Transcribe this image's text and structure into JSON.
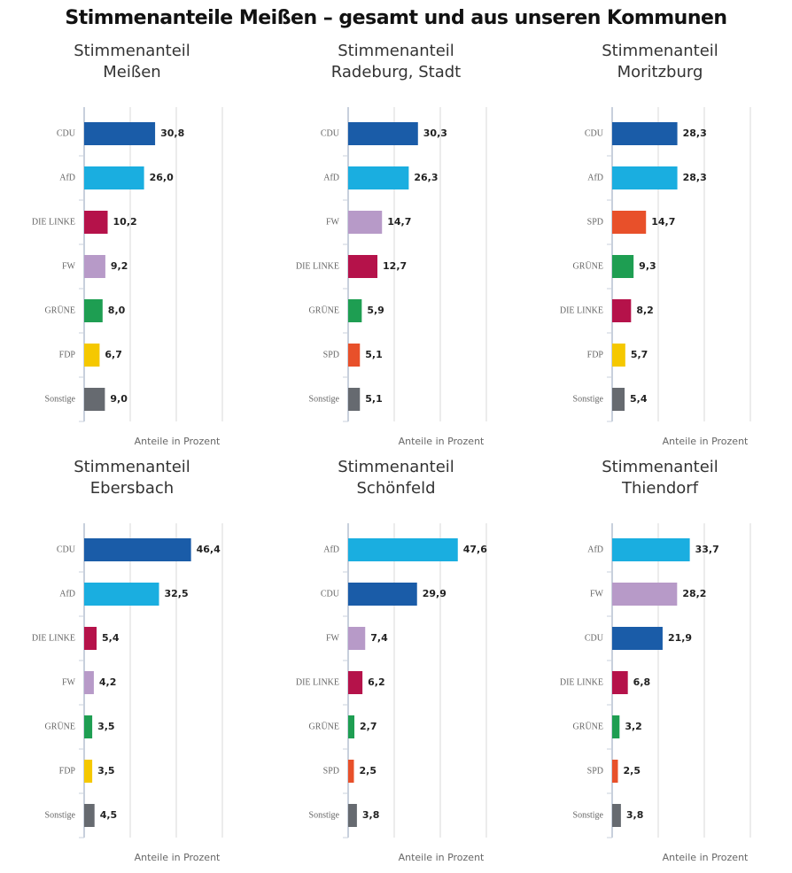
{
  "title": "Stimmenanteile Meißen – gesamt und aus unseren Kommunen",
  "chart_data": [
    {
      "type": "bar",
      "title": "Stimmenanteil\nMeißen",
      "xlabel": "Anteile in Prozent",
      "categories": [
        "CDU",
        "AfD",
        "DIE LINKE",
        "FW",
        "GRÜNE",
        "FDP",
        "Sonstige"
      ],
      "values": [
        30.8,
        26.0,
        10.2,
        9.2,
        8.0,
        6.7,
        9.0
      ],
      "value_labels": [
        "30,8",
        "26,0",
        "10,2",
        "9,2",
        "8,0",
        "6,7",
        "9,0"
      ],
      "colors": [
        "#1a5ca8",
        "#1aaee0",
        "#b5124a",
        "#b79ac8",
        "#1e9e52",
        "#f5c800",
        "#666a70"
      ],
      "xlim": [
        0,
        75
      ],
      "xticks": [
        0,
        20,
        40,
        60
      ],
      "grid": true
    },
    {
      "type": "bar",
      "title": "Stimmenanteil\nRadeburg, Stadt",
      "xlabel": "Anteile in Prozent",
      "categories": [
        "CDU",
        "AfD",
        "FW",
        "DIE LINKE",
        "GRÜNE",
        "SPD",
        "Sonstige"
      ],
      "values": [
        30.3,
        26.3,
        14.7,
        12.7,
        5.9,
        5.1,
        5.1
      ],
      "value_labels": [
        "30,3",
        "26,3",
        "14,7",
        "12,7",
        "5,9",
        "5,1",
        "5,1"
      ],
      "colors": [
        "#1a5ca8",
        "#1aaee0",
        "#b79ac8",
        "#b5124a",
        "#1e9e52",
        "#e8502a",
        "#666a70"
      ],
      "xlim": [
        0,
        75
      ],
      "xticks": [
        0,
        20,
        40,
        60
      ],
      "grid": true
    },
    {
      "type": "bar",
      "title": "Stimmenanteil\nMoritzburg",
      "xlabel": "Anteile in Prozent",
      "categories": [
        "CDU",
        "AfD",
        "SPD",
        "GRÜNE",
        "DIE LINKE",
        "FDP",
        "Sonstige"
      ],
      "values": [
        28.3,
        28.3,
        14.7,
        9.3,
        8.2,
        5.7,
        5.4
      ],
      "value_labels": [
        "28,3",
        "28,3",
        "14,7",
        "9,3",
        "8,2",
        "5,7",
        "5,4"
      ],
      "colors": [
        "#1a5ca8",
        "#1aaee0",
        "#e8502a",
        "#1e9e52",
        "#b5124a",
        "#f5c800",
        "#666a70"
      ],
      "xlim": [
        0,
        75
      ],
      "xticks": [
        0,
        20,
        40,
        60
      ],
      "grid": true
    },
    {
      "type": "bar",
      "title": "Stimmenanteil\nEbersbach",
      "xlabel": "Anteile in Prozent",
      "categories": [
        "CDU",
        "AfD",
        "DIE LINKE",
        "FW",
        "GRÜNE",
        "FDP",
        "Sonstige"
      ],
      "values": [
        46.4,
        32.5,
        5.4,
        4.2,
        3.5,
        3.5,
        4.5
      ],
      "value_labels": [
        "46,4",
        "32,5",
        "5,4",
        "4,2",
        "3,5",
        "3,5",
        "4,5"
      ],
      "colors": [
        "#1a5ca8",
        "#1aaee0",
        "#b5124a",
        "#b79ac8",
        "#1e9e52",
        "#f5c800",
        "#666a70"
      ],
      "xlim": [
        0,
        75
      ],
      "xticks": [
        0,
        20,
        40,
        60
      ],
      "grid": true
    },
    {
      "type": "bar",
      "title": "Stimmenanteil\nSchönfeld",
      "xlabel": "Anteile in Prozent",
      "categories": [
        "AfD",
        "CDU",
        "FW",
        "DIE LINKE",
        "GRÜNE",
        "SPD",
        "Sonstige"
      ],
      "values": [
        47.6,
        29.9,
        7.4,
        6.2,
        2.7,
        2.5,
        3.8
      ],
      "value_labels": [
        "47,6",
        "29,9",
        "7,4",
        "6,2",
        "2,7",
        "2,5",
        "3,8"
      ],
      "colors": [
        "#1aaee0",
        "#1a5ca8",
        "#b79ac8",
        "#b5124a",
        "#1e9e52",
        "#e8502a",
        "#666a70"
      ],
      "xlim": [
        0,
        75
      ],
      "xticks": [
        0,
        20,
        40,
        60
      ],
      "grid": true
    },
    {
      "type": "bar",
      "title": "Stimmenanteil\nThiendorf",
      "xlabel": "Anteile in Prozent",
      "categories": [
        "AfD",
        "FW",
        "CDU",
        "DIE LINKE",
        "GRÜNE",
        "SPD",
        "Sonstige"
      ],
      "values": [
        33.7,
        28.2,
        21.9,
        6.8,
        3.2,
        2.5,
        3.8
      ],
      "value_labels": [
        "33,7",
        "28,2",
        "21,9",
        "6,8",
        "3,2",
        "2,5",
        "3,8"
      ],
      "colors": [
        "#1aaee0",
        "#b79ac8",
        "#1a5ca8",
        "#b5124a",
        "#1e9e52",
        "#e8502a",
        "#666a70"
      ],
      "xlim": [
        0,
        75
      ],
      "xticks": [
        0,
        20,
        40,
        60
      ],
      "grid": true
    }
  ]
}
